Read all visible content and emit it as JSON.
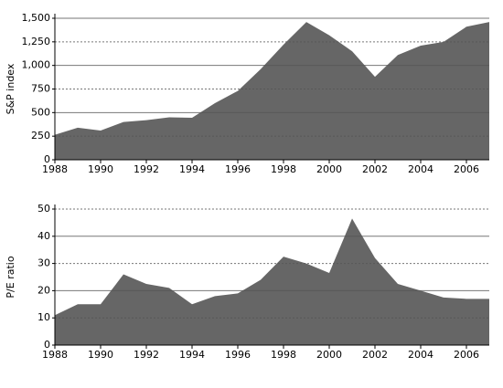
{
  "chart_data": [
    {
      "type": "area",
      "y_label": "S&P index",
      "color": "#666666",
      "x": [
        1988,
        1989,
        1990,
        1991,
        1992,
        1993,
        1994,
        1995,
        1996,
        1997,
        1998,
        1999,
        2000,
        2001,
        2002,
        2003,
        2004,
        2005,
        2006,
        2007
      ],
      "values": [
        265,
        340,
        310,
        400,
        420,
        450,
        445,
        600,
        730,
        960,
        1220,
        1460,
        1320,
        1150,
        880,
        1110,
        1210,
        1250,
        1410,
        1460
      ],
      "xlim": [
        1988,
        2007
      ],
      "xticks": [
        1988,
        1990,
        1992,
        1994,
        1996,
        1998,
        2000,
        2002,
        2004,
        2006
      ],
      "ylim": [
        0,
        1500
      ],
      "yticks": [
        0,
        250,
        500,
        750,
        {
          "value": 1000,
          "label": "1,000"
        },
        {
          "value": 1250,
          "label": "1,250"
        },
        {
          "value": 1500,
          "label": "1,500"
        }
      ],
      "grid": true
    },
    {
      "type": "area",
      "y_label": "P/E ratio",
      "color": "#666666",
      "x": [
        1988,
        1989,
        1990,
        1991,
        1992,
        1993,
        1994,
        1995,
        1996,
        1997,
        1998,
        1999,
        2000,
        2001,
        2002,
        2003,
        2004,
        2005,
        2006,
        2007
      ],
      "values": [
        11,
        15,
        15,
        26,
        22.5,
        21,
        15,
        18,
        19,
        24,
        32.5,
        30,
        26.5,
        46.5,
        32,
        22.5,
        20,
        17.5,
        17,
        17
      ],
      "xlim": [
        1988,
        2007
      ],
      "xticks": [
        1988,
        1990,
        1992,
        1994,
        1996,
        1998,
        2000,
        2002,
        2004,
        2006
      ],
      "ylim": [
        0,
        50
      ],
      "yticks": [
        0,
        10,
        20,
        30,
        40,
        50
      ],
      "grid": true
    }
  ]
}
